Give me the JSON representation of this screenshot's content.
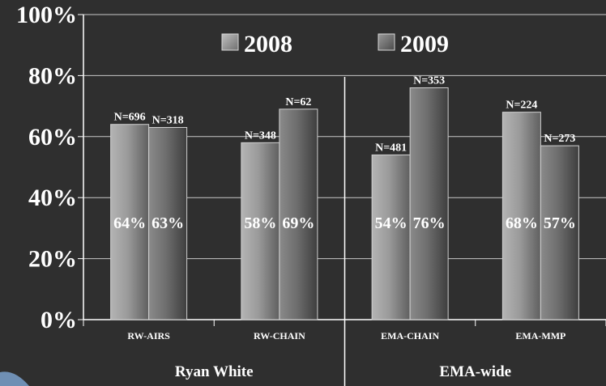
{
  "chart_data": {
    "type": "bar",
    "title": "",
    "xlabel": "",
    "ylabel": "",
    "ylim": [
      0,
      100
    ],
    "yticks": [
      "0%",
      "20%",
      "40%",
      "60%",
      "80%",
      "100%"
    ],
    "grid": true,
    "legend_position": "top",
    "categories": [
      "RW-AIRS",
      "RW-CHAIN",
      "EMA-CHAIN",
      "EMA-MMP"
    ],
    "groups": [
      {
        "label": "Ryan White",
        "categories": [
          "RW-AIRS",
          "RW-CHAIN"
        ]
      },
      {
        "label": "EMA-wide",
        "categories": [
          "EMA-CHAIN",
          "EMA-MMP"
        ]
      }
    ],
    "series": [
      {
        "name": "2008",
        "color": "#9a9a9a",
        "values": [
          64,
          58,
          54,
          68
        ],
        "value_labels": [
          "64%",
          "58%",
          "54%",
          "68%"
        ],
        "n_labels": [
          "N=696",
          "N=348",
          "N=481",
          "N=224"
        ]
      },
      {
        "name": "2009",
        "color": "#6e6e6e",
        "values": [
          63,
          69,
          76,
          57
        ],
        "value_labels": [
          "63%",
          "69%",
          "76%",
          "57%"
        ],
        "n_labels": [
          "N=318",
          "N=62",
          "N=353",
          "N=273"
        ]
      }
    ]
  }
}
